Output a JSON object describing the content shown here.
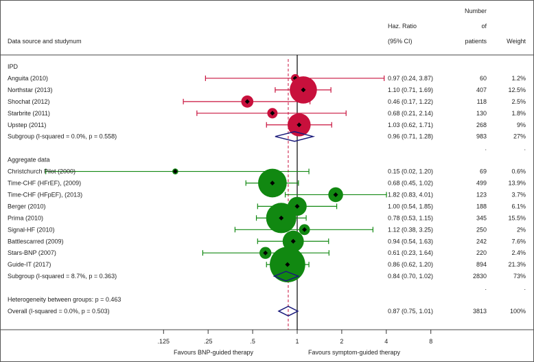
{
  "chart_data": {
    "type": "forest",
    "headers": {
      "study": "Data source and studynum",
      "ratio_line1": "Haz. Ratio",
      "ratio_line2": "(95% CI)",
      "n_line1": "Number",
      "n_line2": "of",
      "n_line3": "patients",
      "weight": "Weight"
    },
    "x_scale": "log",
    "xlim": [
      0.0625,
      10
    ],
    "null_value": 1,
    "overall_effect": 0.87,
    "xticks": [
      {
        "value": 0.125,
        "label": ".125"
      },
      {
        "value": 0.25,
        "label": ".25"
      },
      {
        "value": 0.5,
        "label": ".5"
      },
      {
        "value": 1,
        "label": "1"
      },
      {
        "value": 2,
        "label": "2"
      },
      {
        "value": 4,
        "label": "4"
      },
      {
        "value": 8,
        "label": "8"
      }
    ],
    "favours_left": "Favours BNP-guided therapy",
    "favours_right": "Favours symptom-guided therapy",
    "colors": {
      "ipd": "#c8103c",
      "aggregate": "#118811",
      "diamond": "#1a1a7a",
      "null_line": "#000000",
      "overall_line": "#c8103c"
    },
    "rows": [
      {
        "kind": "group",
        "label": "IPD"
      },
      {
        "kind": "study",
        "group": "ipd",
        "label": "Anguita (2010)",
        "hr": 0.97,
        "lo": 0.24,
        "hi": 3.87,
        "ci_text": "0.97 (0.24, 3.87)",
        "n": "60",
        "weight_pct": 1.2,
        "weight": "1.2%"
      },
      {
        "kind": "study",
        "group": "ipd",
        "label": "Northstar (2013)",
        "hr": 1.1,
        "lo": 0.71,
        "hi": 1.69,
        "ci_text": "1.10 (0.71, 1.69)",
        "n": "407",
        "weight_pct": 12.5,
        "weight": "12.5%"
      },
      {
        "kind": "study",
        "group": "ipd",
        "label": "Shochat (2012)",
        "hr": 0.46,
        "lo": 0.17,
        "hi": 1.22,
        "ci_text": "0.46 (0.17, 1.22)",
        "n": "118",
        "weight_pct": 2.5,
        "weight": "2.5%"
      },
      {
        "kind": "study",
        "group": "ipd",
        "label": "Starbrite (2011)",
        "hr": 0.68,
        "lo": 0.21,
        "hi": 2.14,
        "ci_text": "0.68 (0.21, 2.14)",
        "n": "130",
        "weight_pct": 1.8,
        "weight": "1.8%"
      },
      {
        "kind": "study",
        "group": "ipd",
        "label": "Upstep (2011)",
        "hr": 1.03,
        "lo": 0.62,
        "hi": 1.71,
        "ci_text": "1.03 (0.62, 1.71)",
        "n": "268",
        "weight_pct": 9,
        "weight": "9%"
      },
      {
        "kind": "subtotal",
        "label": "Subgroup (I-squared = 0.0%, p = 0.558)",
        "hr": 0.96,
        "lo": 0.71,
        "hi": 1.28,
        "ci_text": "0.96 (0.71, 1.28)",
        "n": "983",
        "weight": "27%"
      },
      {
        "kind": "dot"
      },
      {
        "kind": "group",
        "label": "Aggregate data"
      },
      {
        "kind": "study",
        "group": "aggregate",
        "label": "Christchurch Pilot (2000)",
        "hr": 0.15,
        "lo": 0.02,
        "hi": 1.2,
        "ci_text": "0.15 (0.02, 1.20)",
        "n": "69",
        "weight_pct": 0.6,
        "weight": "0.6%"
      },
      {
        "kind": "study",
        "group": "aggregate",
        "label": "Time-CHF (HFrEF), (2009)",
        "hr": 0.68,
        "lo": 0.45,
        "hi": 1.02,
        "ci_text": "0.68 (0.45, 1.02)",
        "n": "499",
        "weight_pct": 13.9,
        "weight": "13.9%"
      },
      {
        "kind": "study",
        "group": "aggregate",
        "label": "Time-CHF (HFpEF), (2013)",
        "hr": 1.82,
        "lo": 0.83,
        "hi": 4.01,
        "ci_text": "1.82 (0.83, 4.01)",
        "n": "123",
        "weight_pct": 3.7,
        "weight": "3.7%"
      },
      {
        "kind": "study",
        "group": "aggregate",
        "label": "Berger (2010)",
        "hr": 1.0,
        "lo": 0.54,
        "hi": 1.85,
        "ci_text": "1.00 (0.54, 1.85)",
        "n": "188",
        "weight_pct": 6.1,
        "weight": "6.1%"
      },
      {
        "kind": "study",
        "group": "aggregate",
        "label": "Prima (2010)",
        "hr": 0.78,
        "lo": 0.53,
        "hi": 1.15,
        "ci_text": "0.78 (0.53, 1.15)",
        "n": "345",
        "weight_pct": 15.5,
        "weight": "15.5%"
      },
      {
        "kind": "study",
        "group": "aggregate",
        "label": "Signal-HF (2010)",
        "hr": 1.12,
        "lo": 0.38,
        "hi": 3.25,
        "ci_text": "1.12 (0.38, 3.25)",
        "n": "250",
        "weight_pct": 2,
        "weight": "2%"
      },
      {
        "kind": "study",
        "group": "aggregate",
        "label": "Battlescarred (2009)",
        "hr": 0.94,
        "lo": 0.54,
        "hi": 1.63,
        "ci_text": "0.94 (0.54, 1.63)",
        "n": "242",
        "weight_pct": 7.6,
        "weight": "7.6%"
      },
      {
        "kind": "study",
        "group": "aggregate",
        "label": "Stars-BNP (2007)",
        "hr": 0.61,
        "lo": 0.23,
        "hi": 1.64,
        "ci_text": "0.61 (0.23, 1.64)",
        "n": "220",
        "weight_pct": 2.4,
        "weight": "2.4%"
      },
      {
        "kind": "study",
        "group": "aggregate",
        "label": "Guide-IT (2017)",
        "hr": 0.86,
        "lo": 0.62,
        "hi": 1.2,
        "ci_text": "0.86 (0.62, 1.20)",
        "n": "894",
        "weight_pct": 21.3,
        "weight": "21.3%"
      },
      {
        "kind": "subtotal",
        "label": "Subgroup (I-squared = 8.7%, p = 0.363)",
        "hr": 0.84,
        "lo": 0.7,
        "hi": 1.02,
        "ci_text": "0.84 (0.70, 1.02)",
        "n": "2830",
        "weight": "73%"
      },
      {
        "kind": "dot"
      },
      {
        "kind": "note",
        "label": "Heterogeneity between groups: p = 0.463"
      },
      {
        "kind": "overall",
        "label": "Overall (I-squared = 0.0%, p = 0.503)",
        "hr": 0.87,
        "lo": 0.75,
        "hi": 1.01,
        "ci_text": "0.87 (0.75, 1.01)",
        "n": "3813",
        "weight": "100%"
      }
    ]
  }
}
